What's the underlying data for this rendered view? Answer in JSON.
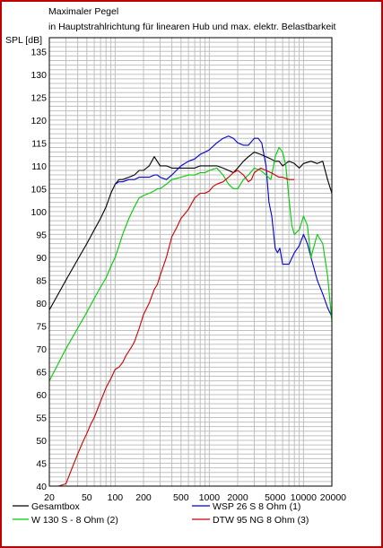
{
  "chart_data": {
    "type": "line",
    "title": "Maximaler Pegel",
    "subtitle": "in Hauptstrahlrichtung für linearen Hub und max. elektr. Belastbarkeit",
    "ylabel": "SPL [dB]",
    "xlabel": "",
    "x_scale": "log",
    "xlim": [
      20,
      20000
    ],
    "ylim": [
      40,
      138
    ],
    "grid": true,
    "legend_position": "bottom",
    "y_ticks": [
      "135",
      "130",
      "125",
      "120",
      "115",
      "110",
      "105",
      "100",
      "95",
      "90",
      "85",
      "80",
      "75",
      "70",
      "65",
      "60",
      "55",
      "50",
      "45",
      "40"
    ],
    "x_ticks": [
      {
        "v": 20,
        "label": "20"
      },
      {
        "v": 50,
        "label": "50"
      },
      {
        "v": 100,
        "label": "100"
      },
      {
        "v": 200,
        "label": "200"
      },
      {
        "v": 500,
        "label": "500"
      },
      {
        "v": 1000,
        "label": "1000"
      },
      {
        "v": 2000,
        "label": "2000"
      },
      {
        "v": 5000,
        "label": "5000"
      },
      {
        "v": 10000,
        "label": "10000"
      },
      {
        "v": 20000,
        "label": "20000"
      }
    ],
    "series": [
      {
        "name": "Gesamtbox",
        "color": "#000000",
        "x": [
          20,
          30,
          40,
          50,
          60,
          70,
          80,
          90,
          100,
          110,
          120,
          140,
          160,
          180,
          200,
          230,
          260,
          280,
          300,
          350,
          400,
          500,
          600,
          700,
          800,
          900,
          1000,
          1200,
          1400,
          1600,
          1800,
          2000,
          2300,
          2600,
          3000,
          3500,
          4000,
          4500,
          5000,
          5500,
          6000,
          7000,
          8000,
          9000,
          10000,
          12000,
          14000,
          16000,
          18000,
          20000
        ],
        "values": [
          78.5,
          85,
          89.5,
          93,
          96,
          98.5,
          101,
          104,
          106,
          107,
          107,
          107.5,
          108,
          109,
          109,
          110,
          112,
          111,
          110,
          110,
          109.5,
          109.5,
          109.5,
          109.5,
          110,
          110,
          110,
          110,
          109.5,
          109,
          108.5,
          109.5,
          111,
          112,
          113,
          112.5,
          112,
          111.5,
          111,
          111,
          110,
          111,
          110.5,
          109.5,
          110.5,
          111,
          110.5,
          111,
          107,
          104
        ]
      },
      {
        "name": "WSP 26 S 8 Ohm (1)",
        "color": "#0000cc",
        "x": [
          100,
          110,
          120,
          140,
          160,
          180,
          200,
          230,
          260,
          280,
          300,
          350,
          400,
          500,
          600,
          700,
          800,
          900,
          1000,
          1200,
          1400,
          1600,
          1800,
          2000,
          2300,
          2600,
          3000,
          3300,
          3600,
          4000,
          4300,
          4600,
          5000,
          5300,
          5600,
          6000,
          6500,
          7000,
          8000,
          9000,
          10000,
          11000,
          12000,
          14000,
          16000,
          18000,
          20000
        ],
        "values": [
          106,
          106.5,
          106.5,
          107,
          107,
          107.5,
          107.5,
          107.5,
          108,
          108,
          107.5,
          107,
          108,
          110,
          111,
          111.5,
          112.5,
          113,
          113.5,
          115,
          116,
          116.5,
          116,
          115,
          114.5,
          114.5,
          116,
          116,
          115,
          110,
          102,
          99,
          92,
          91,
          92,
          88.5,
          88.5,
          88.5,
          91,
          92.5,
          95,
          93,
          90,
          85,
          82,
          79,
          77
        ]
      },
      {
        "name": "W 130 S - 8 Ohm (2)",
        "color": "#00cc00",
        "x": [
          20,
          30,
          40,
          50,
          60,
          70,
          80,
          90,
          100,
          110,
          120,
          140,
          160,
          180,
          200,
          230,
          260,
          280,
          300,
          350,
          400,
          500,
          600,
          700,
          800,
          900,
          1000,
          1200,
          1400,
          1600,
          1800,
          2000,
          2300,
          2600,
          3000,
          3500,
          4000,
          4500,
          5000,
          5500,
          6000,
          6500,
          7000,
          7500,
          8000,
          9000,
          10000,
          11000,
          12000,
          14000,
          16000,
          18000,
          20000
        ],
        "values": [
          63,
          70,
          74.5,
          78,
          81,
          83.5,
          85.5,
          88,
          90,
          92.5,
          95,
          98.5,
          101,
          103,
          103.5,
          104,
          104.5,
          105,
          105,
          106,
          107,
          107.5,
          108,
          108,
          108.5,
          108.5,
          109,
          109.5,
          108,
          106,
          105,
          105,
          107,
          108,
          109.5,
          109,
          108,
          107,
          112,
          114,
          113,
          110,
          103,
          97,
          95,
          96,
          99,
          97,
          90,
          95,
          93,
          86,
          76
        ]
      },
      {
        "name": "DTW 95 NG 8 Ohm (3)",
        "color": "#cc0000",
        "x": [
          20,
          25,
          30,
          35,
          40,
          45,
          50,
          55,
          60,
          70,
          80,
          90,
          100,
          110,
          120,
          130,
          140,
          150,
          160,
          180,
          200,
          230,
          260,
          280,
          300,
          350,
          400,
          450,
          500,
          550,
          600,
          700,
          800,
          900,
          1000,
          1100,
          1200,
          1400,
          1600,
          1800,
          2000,
          2300,
          2600,
          2800,
          3000,
          3500,
          4000,
          4500,
          5000,
          5500,
          6000,
          7000,
          8000
        ],
        "values": [
          40,
          40,
          40.5,
          44,
          47,
          49.5,
          51.5,
          53.5,
          55,
          58.5,
          61.5,
          63.5,
          65.5,
          66,
          67,
          68.5,
          69.5,
          70.5,
          71.5,
          74.5,
          77.5,
          80,
          83,
          84,
          86,
          90,
          94.5,
          96.5,
          98.5,
          99.5,
          100.5,
          103,
          104,
          104,
          104.5,
          105.5,
          106,
          106.5,
          107.5,
          108.5,
          109,
          108,
          106.5,
          107,
          108.5,
          109.5,
          109,
          108.5,
          108,
          107.5,
          107.5,
          107,
          107
        ]
      }
    ]
  }
}
